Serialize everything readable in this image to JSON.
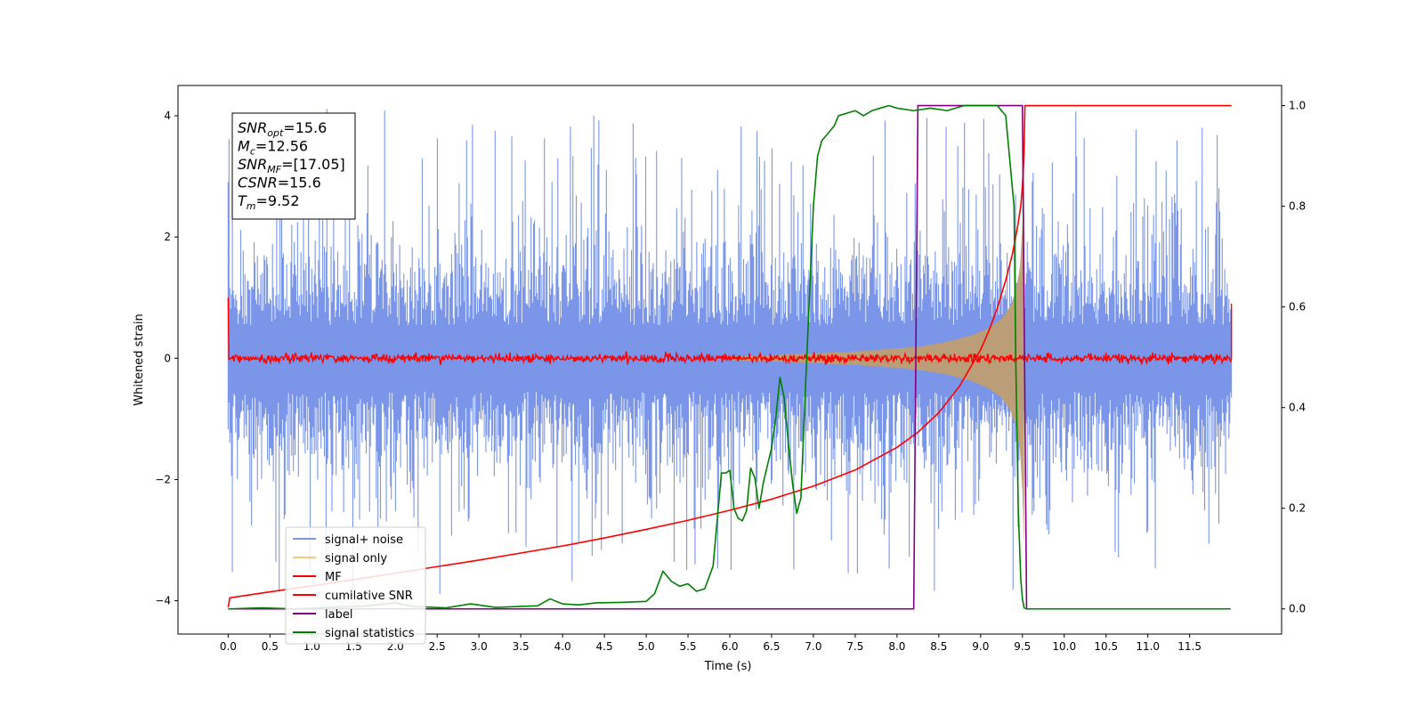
{
  "chart_data": {
    "type": "line",
    "title": "",
    "xlabel": "Time (s)",
    "ylabel": "Whitened strain",
    "y2label": "",
    "xlim": [
      -0.6,
      12.6
    ],
    "ylim": [
      -4.55,
      4.5
    ],
    "y2lim": [
      -0.05,
      1.04
    ],
    "x_ticks": [
      0.0,
      0.5,
      1.0,
      1.5,
      2.0,
      2.5,
      3.0,
      3.5,
      4.0,
      4.5,
      5.0,
      5.5,
      6.0,
      6.5,
      7.0,
      7.5,
      8.0,
      8.5,
      9.0,
      9.5,
      10.0,
      10.5,
      11.0,
      11.5
    ],
    "x_tick_labels": [
      "0.0",
      "0.5",
      "1.0",
      "1.5",
      "2.0",
      "2.5",
      "3.0",
      "3.5",
      "4.0",
      "4.5",
      "5.0",
      "5.5",
      "6.0",
      "6.5",
      "7.0",
      "7.5",
      "8.0",
      "8.5",
      "9.0",
      "9.5",
      "10.0",
      "10.5",
      "11.0",
      "11.5"
    ],
    "y_ticks": [
      -4,
      -2,
      0,
      2,
      4
    ],
    "y_tick_labels": [
      "−4",
      "−2",
      "0",
      "2",
      "4"
    ],
    "y2_ticks": [
      0.0,
      0.2,
      0.4,
      0.6,
      0.8,
      1.0
    ],
    "y2_tick_labels": [
      "0.0",
      "0.2",
      "0.4",
      "0.6",
      "0.8",
      "1.0"
    ],
    "grid": false,
    "legend_position": "lower-left",
    "info_box": {
      "lines": [
        {
          "base": "SNR",
          "sub": "opt",
          "value": "=15.6"
        },
        {
          "base": "M",
          "sub": "c",
          "value": "=12.56"
        },
        {
          "base": "SNR",
          "sub": "MF",
          "value": "=[17.05]"
        },
        {
          "base": "CSNR",
          "sub": "",
          "value": "=15.6"
        },
        {
          "base": "T",
          "sub": "m",
          "value": "=9.52"
        }
      ]
    },
    "series": [
      {
        "name": "signal+ noise",
        "axis": "left",
        "color": "#7b96e8",
        "kind": "noise",
        "x_start": 0.0,
        "x_end": 12.0,
        "band_std": 0.85,
        "peak_max": 4.1,
        "peak_min": -3.9
      },
      {
        "name": "signal only",
        "axis": "left",
        "color": "#f5c97a",
        "fill_color": "#bf9d72",
        "kind": "chirp_envelope",
        "x": [
          6.0,
          6.5,
          7.0,
          7.5,
          8.0,
          8.3,
          8.6,
          8.9,
          9.1,
          9.25,
          9.35,
          9.42,
          9.47,
          9.5,
          9.52
        ],
        "amplitude": [
          0.03,
          0.05,
          0.08,
          0.11,
          0.16,
          0.2,
          0.27,
          0.38,
          0.5,
          0.65,
          0.85,
          1.1,
          1.5,
          2.2,
          3.1
        ]
      },
      {
        "name": "MF",
        "axis": "left",
        "color": "#ff0000",
        "kind": "mf_noise",
        "x_start": 0.0,
        "x_end": 12.0,
        "start_value": 1.0,
        "end_value": 0.9,
        "band": 0.07,
        "peak_max": 0.15
      },
      {
        "name": "cumilative SNR",
        "axis": "right",
        "color": "#ff0000",
        "kind": "line",
        "x": [
          0.0,
          0.02,
          0.5,
          1.0,
          1.5,
          2.0,
          2.5,
          3.0,
          3.5,
          4.0,
          4.5,
          5.0,
          5.5,
          6.0,
          6.5,
          7.0,
          7.5,
          8.0,
          8.25,
          8.5,
          8.75,
          9.0,
          9.1,
          9.2,
          9.3,
          9.38,
          9.44,
          9.48,
          9.5,
          9.51,
          9.52,
          9.53,
          12.0
        ],
        "y": [
          0.003,
          0.022,
          0.034,
          0.046,
          0.058,
          0.071,
          0.084,
          0.097,
          0.111,
          0.125,
          0.141,
          0.158,
          0.176,
          0.196,
          0.218,
          0.244,
          0.276,
          0.321,
          0.351,
          0.39,
          0.443,
          0.515,
          0.553,
          0.598,
          0.653,
          0.705,
          0.757,
          0.8,
          0.84,
          0.87,
          0.91,
          1.0,
          1.0
        ]
      },
      {
        "name": "label",
        "axis": "right",
        "color": "#800080",
        "kind": "line",
        "x": [
          0.0,
          8.2,
          8.25,
          9.5,
          9.55,
          11.99
        ],
        "y": [
          0.0,
          0.0,
          1.0,
          1.0,
          0.0,
          0.0
        ]
      },
      {
        "name": "signal statistics",
        "axis": "right",
        "color": "#008000",
        "kind": "line",
        "x": [
          0.0,
          0.4,
          0.8,
          1.2,
          1.6,
          2.0,
          2.2,
          2.6,
          2.9,
          3.2,
          3.5,
          3.7,
          3.85,
          4.0,
          4.2,
          4.4,
          4.7,
          5.0,
          5.1,
          5.2,
          5.3,
          5.4,
          5.5,
          5.6,
          5.7,
          5.8,
          5.9,
          5.95,
          6.0,
          6.05,
          6.1,
          6.15,
          6.2,
          6.25,
          6.3,
          6.35,
          6.4,
          6.5,
          6.55,
          6.6,
          6.65,
          6.7,
          6.75,
          6.8,
          6.85,
          6.9,
          7.0,
          7.05,
          7.1,
          7.15,
          7.2,
          7.25,
          7.3,
          7.4,
          7.5,
          7.6,
          7.7,
          7.8,
          7.9,
          8.0,
          8.2,
          8.4,
          8.6,
          8.8,
          9.0,
          9.2,
          9.3,
          9.4,
          9.42,
          9.45,
          9.48,
          9.5,
          9.52,
          9.55,
          9.6,
          10.0,
          11.0,
          11.99
        ],
        "y": [
          0.0,
          0.002,
          0.0,
          0.003,
          0.005,
          0.012,
          0.005,
          0.002,
          0.01,
          0.003,
          0.005,
          0.006,
          0.02,
          0.01,
          0.008,
          0.012,
          0.013,
          0.015,
          0.03,
          0.075,
          0.055,
          0.045,
          0.05,
          0.035,
          0.04,
          0.085,
          0.27,
          0.27,
          0.275,
          0.2,
          0.18,
          0.175,
          0.195,
          0.28,
          0.26,
          0.2,
          0.25,
          0.32,
          0.38,
          0.46,
          0.42,
          0.33,
          0.25,
          0.19,
          0.22,
          0.42,
          0.8,
          0.9,
          0.93,
          0.94,
          0.95,
          0.96,
          0.98,
          0.985,
          0.99,
          0.98,
          0.99,
          0.995,
          1.0,
          0.995,
          0.99,
          0.995,
          0.99,
          1.0,
          1.0,
          1.0,
          0.98,
          0.8,
          0.5,
          0.2,
          0.06,
          0.02,
          0.002,
          0.0,
          0.0,
          0.0,
          0.0,
          0.0
        ]
      }
    ]
  }
}
